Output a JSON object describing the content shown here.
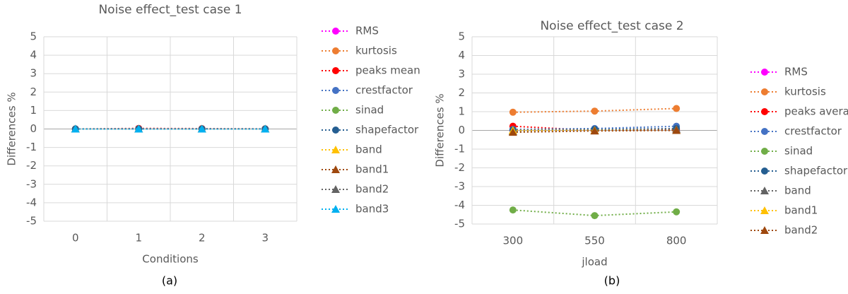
{
  "chart_data": [
    {
      "type": "line",
      "title": "Noise effect_test case 1",
      "xlabel": "Conditions",
      "ylabel": "Differences %",
      "caption": "(a)",
      "categories": [
        "0",
        "1",
        "2",
        "3"
      ],
      "ylim": [
        -5,
        5
      ],
      "yticks": [
        -5,
        -4,
        -3,
        -2,
        -1,
        0,
        1,
        2,
        3,
        4,
        5
      ],
      "grid": true,
      "series": [
        {
          "name": "RMS",
          "color": "#ff00ff",
          "marker": "circle",
          "values": [
            0,
            0,
            0,
            0
          ]
        },
        {
          "name": "kurtosis",
          "color": "#ed7d31",
          "marker": "circle",
          "values": [
            0,
            0.02,
            0.01,
            0
          ]
        },
        {
          "name": "peaks mean",
          "color": "#ff0000",
          "marker": "circle",
          "values": [
            0,
            0.03,
            0.02,
            0.01
          ]
        },
        {
          "name": "crestfactor",
          "color": "#4472c4",
          "marker": "circle",
          "values": [
            0,
            0,
            0,
            0
          ]
        },
        {
          "name": "sinad",
          "color": "#70ad47",
          "marker": "circle",
          "values": [
            0,
            0,
            0,
            0
          ]
        },
        {
          "name": "shapefactor",
          "color": "#255e91",
          "marker": "circle",
          "values": [
            0,
            0,
            0,
            0
          ]
        },
        {
          "name": "band",
          "color": "#ffc000",
          "marker": "triangle",
          "values": [
            0,
            0,
            0,
            0
          ]
        },
        {
          "name": "band1",
          "color": "#9e480e",
          "marker": "triangle",
          "values": [
            0,
            0,
            0,
            0
          ]
        },
        {
          "name": "band2",
          "color": "#636363",
          "marker": "triangle",
          "values": [
            0,
            0,
            0,
            0
          ]
        },
        {
          "name": "band3",
          "color": "#00b0f0",
          "marker": "triangle",
          "values": [
            0,
            0,
            0,
            0
          ]
        }
      ]
    },
    {
      "type": "line",
      "title": "Noise effect_test case 2",
      "xlabel": "jload",
      "ylabel": "Differences %",
      "caption": "(b)",
      "categories": [
        "300",
        "550",
        "800"
      ],
      "ylim": [
        -5,
        5
      ],
      "yticks": [
        -5,
        -4,
        -3,
        -2,
        -1,
        0,
        1,
        2,
        3,
        4,
        5
      ],
      "grid": true,
      "series": [
        {
          "name": "RMS",
          "color": "#ff00ff",
          "marker": "circle",
          "values": [
            0,
            0,
            0
          ]
        },
        {
          "name": "kurtosis",
          "color": "#ed7d31",
          "marker": "circle",
          "values": [
            0.97,
            1.03,
            1.17
          ]
        },
        {
          "name": "peaks average",
          "color": "#ff0000",
          "marker": "circle",
          "values": [
            0.22,
            0,
            0.05
          ]
        },
        {
          "name": "crestfactor",
          "color": "#4472c4",
          "marker": "circle",
          "values": [
            0.05,
            0.1,
            0.22
          ]
        },
        {
          "name": "sinad",
          "color": "#70ad47",
          "marker": "circle",
          "values": [
            -4.25,
            -4.55,
            -4.35
          ]
        },
        {
          "name": "shapefactor",
          "color": "#255e91",
          "marker": "circle",
          "values": [
            0.02,
            0.05,
            0.1
          ]
        },
        {
          "name": "band",
          "color": "#636363",
          "marker": "triangle",
          "values": [
            -0.05,
            0,
            0.07
          ]
        },
        {
          "name": "band1",
          "color": "#ffc000",
          "marker": "triangle",
          "values": [
            0,
            0,
            0
          ]
        },
        {
          "name": "band2",
          "color": "#9e480e",
          "marker": "triangle",
          "values": [
            -0.1,
            -0.03,
            0
          ]
        }
      ]
    }
  ]
}
